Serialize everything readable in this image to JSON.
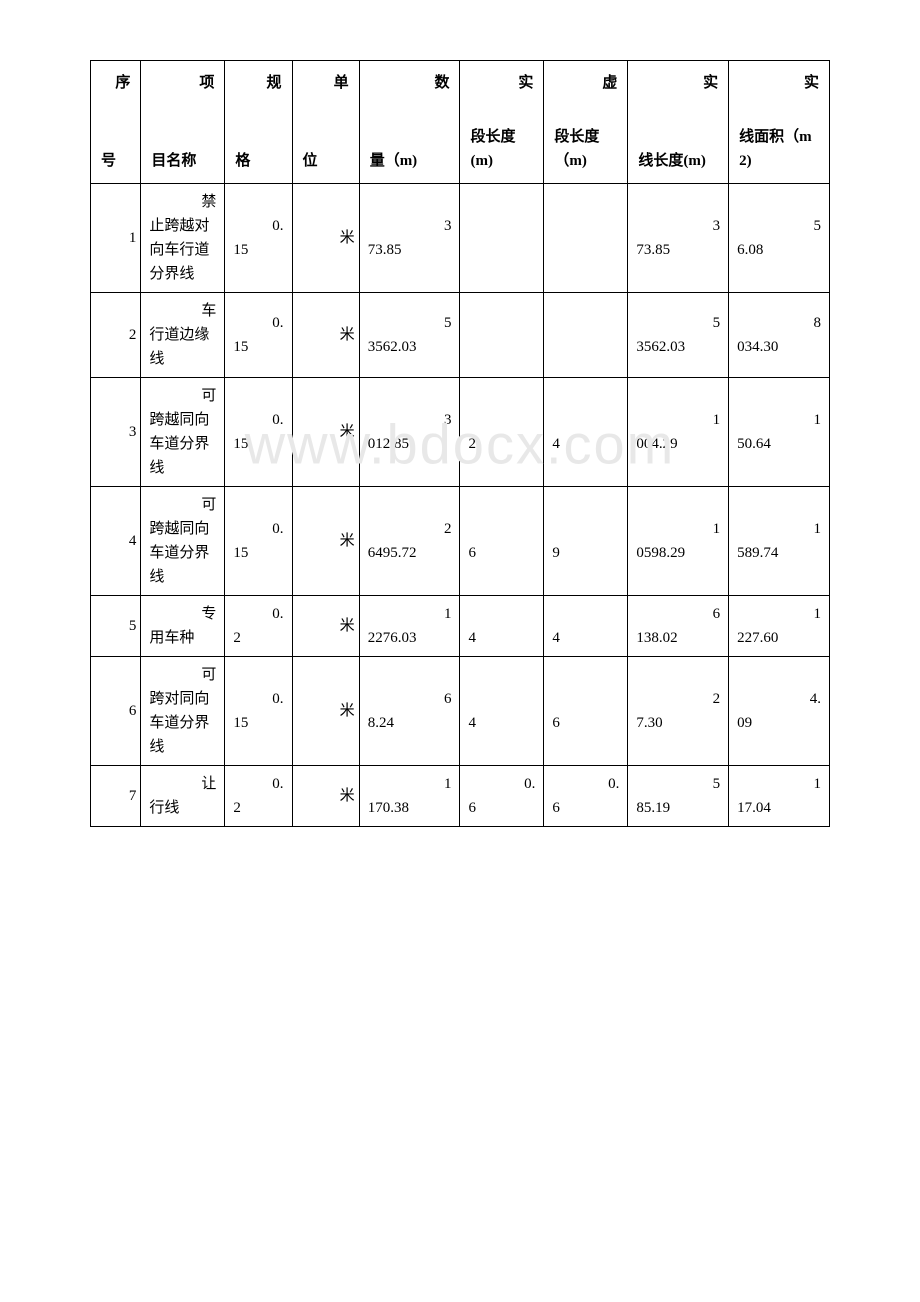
{
  "watermark": "www.bdocx.com",
  "headers": {
    "seq": {
      "top": "序",
      "bottom": "号"
    },
    "name": {
      "top": "项",
      "bottom": "目名称"
    },
    "spec": {
      "top": "规",
      "bottom": "格"
    },
    "unit": {
      "top": "单",
      "bottom": "位"
    },
    "qty": {
      "top": "数",
      "bottom": "量（m)"
    },
    "solid_seg": {
      "top": "实",
      "bottom": "段长度(m)"
    },
    "dash_seg": {
      "top": "虚",
      "bottom": "段长度（m)"
    },
    "solid_len": {
      "top": "实",
      "bottom": "线长度(m)"
    },
    "solid_area": {
      "top": "实",
      "bottom": "线面积（m2)"
    }
  },
  "rows": [
    {
      "seq": "1",
      "name_first": "禁",
      "name_rest": "止跨越对向车行道分界线",
      "spec_first": "0.",
      "spec_rest": "15",
      "unit": "米",
      "qty_first": "3",
      "qty_rest": "73.85",
      "solid_seg_first": "",
      "solid_seg_rest": "",
      "dash_seg_first": "",
      "dash_seg_rest": "",
      "solid_len_first": "3",
      "solid_len_rest": "73.85",
      "solid_area_first": "5",
      "solid_area_rest": "6.08"
    },
    {
      "seq": "2",
      "name_first": "车",
      "name_rest": "行道边缘线",
      "spec_first": "0.",
      "spec_rest": "15",
      "unit": "米",
      "qty_first": "5",
      "qty_rest": "3562.03",
      "solid_seg_first": "",
      "solid_seg_rest": "",
      "dash_seg_first": "",
      "dash_seg_rest": "",
      "solid_len_first": "5",
      "solid_len_rest": "3562.03",
      "solid_area_first": "8",
      "solid_area_rest": "034.30"
    },
    {
      "seq": "3",
      "name_first": "可",
      "name_rest": "跨越同向车道分界线",
      "spec_first": "0.",
      "spec_rest": "15",
      "unit": "米",
      "qty_first": "3",
      "qty_rest": "012.85",
      "solid_seg_first": "",
      "solid_seg_rest": "2",
      "dash_seg_first": "",
      "dash_seg_rest": "4",
      "solid_len_first": "1",
      "solid_len_rest": "004.29",
      "solid_area_first": "1",
      "solid_area_rest": "50.64"
    },
    {
      "seq": "4",
      "name_first": "可",
      "name_rest": "跨越同向车道分界线",
      "spec_first": "0.",
      "spec_rest": "15",
      "unit": "米",
      "qty_first": "2",
      "qty_rest": "6495.72",
      "solid_seg_first": "",
      "solid_seg_rest": "6",
      "dash_seg_first": "",
      "dash_seg_rest": "9",
      "solid_len_first": "1",
      "solid_len_rest": "0598.29",
      "solid_area_first": "1",
      "solid_area_rest": "589.74"
    },
    {
      "seq": "5",
      "name_first": "专",
      "name_rest": "用车种",
      "spec_first": "0.",
      "spec_rest": "2",
      "unit": "米",
      "qty_first": "1",
      "qty_rest": "2276.03",
      "solid_seg_first": "",
      "solid_seg_rest": "4",
      "dash_seg_first": "",
      "dash_seg_rest": "4",
      "solid_len_first": "6",
      "solid_len_rest": "138.02",
      "solid_area_first": "1",
      "solid_area_rest": "227.60"
    },
    {
      "seq": "6",
      "name_first": "可",
      "name_rest": "跨对同向车道分界线",
      "spec_first": "0.",
      "spec_rest": "15",
      "unit": "米",
      "qty_first": "6",
      "qty_rest": "8.24",
      "solid_seg_first": "",
      "solid_seg_rest": "4",
      "dash_seg_first": "",
      "dash_seg_rest": "6",
      "solid_len_first": "2",
      "solid_len_rest": "7.30",
      "solid_area_first": "4.",
      "solid_area_rest": "09"
    },
    {
      "seq": "7",
      "name_first": "让",
      "name_rest": "行线",
      "spec_first": "0.",
      "spec_rest": "2",
      "unit": "米",
      "qty_first": "1",
      "qty_rest": "170.38",
      "solid_seg_first": "0.",
      "solid_seg_rest": "6",
      "dash_seg_first": "0.",
      "dash_seg_rest": "6",
      "solid_len_first": "5",
      "solid_len_rest": "85.19",
      "solid_area_first": "1",
      "solid_area_rest": "17.04"
    }
  ]
}
